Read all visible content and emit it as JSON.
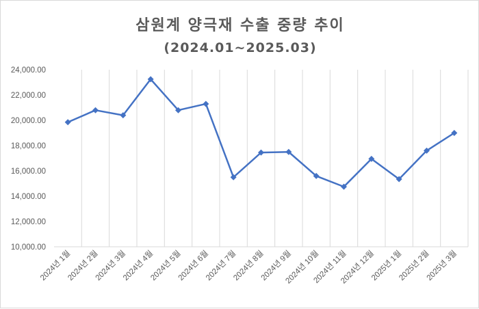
{
  "chart_data": {
    "type": "line",
    "title": "삼원계 양극재 수출 중량 추이",
    "subtitle": "(2024.01~2025.03)",
    "xlabel": "",
    "ylabel": "",
    "categories": [
      "2024년 1월",
      "2024년 2월",
      "2024년 3월",
      "2024년 4월",
      "2024년 5월",
      "2024년 6월",
      "2024년 7월",
      "2024년 8월",
      "2024년 9월",
      "2024년 10월",
      "2024년 11월",
      "2024년 12월",
      "2025년 1월",
      "2025년 2월",
      "2025년 3월"
    ],
    "series": [
      {
        "name": "수출 중량",
        "color": "#4472c4",
        "values": [
          19850,
          20800,
          20400,
          23250,
          20800,
          21300,
          15500,
          17450,
          17500,
          15600,
          14750,
          16950,
          15350,
          17600,
          19000
        ]
      }
    ],
    "ylim": [
      10000,
      24000
    ],
    "yticks": [
      "10,000.00",
      "12,000.00",
      "14,000.00",
      "16,000.00",
      "18,000.00",
      "20,000.00",
      "22,000.00",
      "24,000.00"
    ],
    "grid": "vertical",
    "legend": "none"
  }
}
